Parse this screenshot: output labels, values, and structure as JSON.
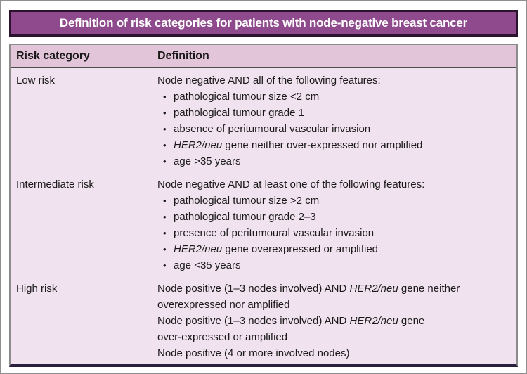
{
  "colors": {
    "title_bg": "#8e4a8c",
    "title_border": "#2b132e",
    "title_text": "#ffffff",
    "header_row_bg": "#e3c5da",
    "header_underline": "#4d4d4d",
    "body_bg": "#f0e2ee",
    "table_border": "#8c8c8c",
    "table_bottom_border": "#2a1f3d",
    "text": "#1a1a1a"
  },
  "title": "Definition of risk categories for patients with node-negative breast cancer",
  "table": {
    "bullet_glyph": "•",
    "col_headers": [
      "Risk category",
      "Definition"
    ],
    "rows": [
      {
        "category": "Low risk",
        "lines": [
          {
            "type": "text",
            "segments": [
              {
                "t": "Node negative AND all of the following features:"
              }
            ]
          },
          {
            "type": "bullet",
            "segments": [
              {
                "t": "pathological tumour size <2 cm"
              }
            ]
          },
          {
            "type": "bullet",
            "segments": [
              {
                "t": "pathological tumour grade 1"
              }
            ]
          },
          {
            "type": "bullet",
            "segments": [
              {
                "t": "absence of peritumoural vascular invasion"
              }
            ]
          },
          {
            "type": "bullet",
            "segments": [
              {
                "t": "HER2/neu",
                "italic": true
              },
              {
                "t": " gene neither over-expressed nor amplified"
              }
            ]
          },
          {
            "type": "bullet",
            "segments": [
              {
                "t": "age >35 years"
              }
            ]
          }
        ]
      },
      {
        "category": "Intermediate risk",
        "lines": [
          {
            "type": "text",
            "segments": [
              {
                "t": "Node negative AND at least one of the following features:"
              }
            ]
          },
          {
            "type": "bullet",
            "segments": [
              {
                "t": "pathological tumour size >2 cm"
              }
            ]
          },
          {
            "type": "bullet",
            "segments": [
              {
                "t": "pathological tumour grade 2–3"
              }
            ]
          },
          {
            "type": "bullet",
            "segments": [
              {
                "t": "presence of peritumoural vascular invasion"
              }
            ]
          },
          {
            "type": "bullet",
            "segments": [
              {
                "t": "HER2/neu",
                "italic": true
              },
              {
                "t": " gene overexpressed or amplified"
              }
            ]
          },
          {
            "type": "bullet",
            "segments": [
              {
                "t": "age <35 years"
              }
            ]
          }
        ]
      },
      {
        "category": "High risk",
        "lines": [
          {
            "type": "text",
            "segments": [
              {
                "t": "Node positive (1–3 nodes involved) AND "
              },
              {
                "t": "HER2/neu",
                "italic": true
              },
              {
                "t": " gene neither"
              }
            ]
          },
          {
            "type": "text",
            "segments": [
              {
                "t": "overexpressed nor amplified"
              }
            ]
          },
          {
            "type": "text",
            "segments": [
              {
                "t": "Node positive (1–3 nodes involved) AND "
              },
              {
                "t": "HER2/neu",
                "italic": true
              },
              {
                "t": " gene"
              }
            ]
          },
          {
            "type": "text",
            "segments": [
              {
                "t": "over-expressed or amplified"
              }
            ]
          },
          {
            "type": "text",
            "segments": [
              {
                "t": "Node positive (4 or more involved nodes)"
              }
            ]
          }
        ]
      }
    ]
  }
}
